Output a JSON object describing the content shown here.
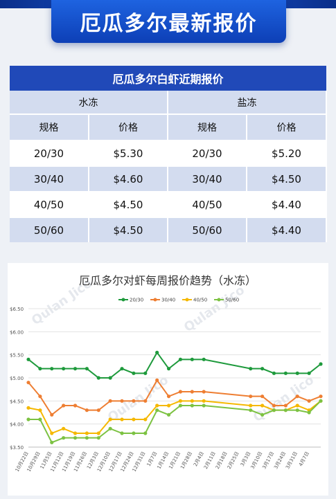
{
  "banner": {
    "title": "厄瓜多尔最新报价"
  },
  "table": {
    "title": "厄瓜多尔白虾近期报价",
    "groups": [
      "水冻",
      "盐冻"
    ],
    "headers": [
      "规格",
      "价格",
      "规格",
      "价格"
    ],
    "rows": [
      [
        "20/30",
        "$5.30",
        "20/30",
        "$5.20"
      ],
      [
        "30/40",
        "$4.60",
        "30/40",
        "$4.50"
      ],
      [
        "40/50",
        "$4.50",
        "40/50",
        "$4.40"
      ],
      [
        "50/60",
        "$4.50",
        "50/60",
        "$4.40"
      ]
    ]
  },
  "watermark": "Qulan Jico",
  "chart_data": {
    "type": "line",
    "title": "厄瓜多尔对虾每周报价趋势（水冻）",
    "yticks": [
      "$6.50",
      "$6.00",
      "$5.50",
      "$5.00",
      "$4.50",
      "$4.00",
      "$3.50"
    ],
    "ylim": [
      3.5,
      6.5
    ],
    "grid": true,
    "legend_position": "top",
    "x": [
      "10月22日",
      "10月29日",
      "11月5日",
      "11月12日",
      "11月19日",
      "11月26日",
      "12月3日",
      "12月10日",
      "12月17日",
      "12月24日",
      "12月31日",
      "1月7日",
      "1月14日",
      "1月21日",
      "1月28日",
      "2月4日",
      "2月11日",
      "2月18日",
      "2月25日",
      "3月3日",
      "3月10日",
      "3月17日",
      "3月24日",
      "3月31日",
      "4月7日"
    ],
    "x_index": [
      0,
      1,
      2,
      3,
      4,
      5,
      6,
      7,
      8,
      9,
      10,
      11,
      12,
      13,
      14,
      15,
      16,
      17,
      18,
      19,
      20,
      21,
      22,
      23,
      24
    ],
    "series": [
      {
        "name": "20/30",
        "color": "#1e9a3c",
        "points": [
          [
            0,
            5.4
          ],
          [
            1,
            5.2
          ],
          [
            2,
            5.2
          ],
          [
            3,
            5.2
          ],
          [
            4,
            5.2
          ],
          [
            5,
            5.2
          ],
          [
            6,
            5.0
          ],
          [
            7,
            5.0
          ],
          [
            8,
            5.2
          ],
          [
            9,
            5.1
          ],
          [
            10,
            5.1
          ],
          [
            11,
            5.55
          ],
          [
            12,
            5.2
          ],
          [
            13,
            5.4
          ],
          [
            14,
            5.4
          ],
          [
            15,
            5.4
          ],
          [
            19,
            5.2
          ],
          [
            20,
            5.2
          ],
          [
            21,
            5.1
          ],
          [
            22,
            5.1
          ],
          [
            23,
            5.1
          ],
          [
            24,
            5.1
          ],
          [
            25,
            5.3
          ]
        ]
      },
      {
        "name": "30/40",
        "color": "#ee7e32",
        "points": [
          [
            0,
            4.9
          ],
          [
            1,
            4.6
          ],
          [
            2,
            4.2
          ],
          [
            3,
            4.4
          ],
          [
            4,
            4.4
          ],
          [
            5,
            4.3
          ],
          [
            6,
            4.3
          ],
          [
            7,
            4.5
          ],
          [
            8,
            4.5
          ],
          [
            9,
            4.5
          ],
          [
            10,
            4.5
          ],
          [
            11,
            4.95
          ],
          [
            12,
            4.6
          ],
          [
            13,
            4.7
          ],
          [
            14,
            4.7
          ],
          [
            15,
            4.7
          ],
          [
            19,
            4.6
          ],
          [
            20,
            4.6
          ],
          [
            21,
            4.4
          ],
          [
            22,
            4.4
          ],
          [
            23,
            4.6
          ],
          [
            24,
            4.5
          ],
          [
            25,
            4.6
          ]
        ]
      },
      {
        "name": "40/50",
        "color": "#f5b800",
        "points": [
          [
            0,
            4.35
          ],
          [
            1,
            4.3
          ],
          [
            2,
            3.8
          ],
          [
            3,
            3.9
          ],
          [
            4,
            3.8
          ],
          [
            5,
            3.8
          ],
          [
            6,
            3.8
          ],
          [
            7,
            4.1
          ],
          [
            8,
            4.1
          ],
          [
            9,
            4.1
          ],
          [
            10,
            4.1
          ],
          [
            11,
            4.4
          ],
          [
            12,
            4.4
          ],
          [
            13,
            4.5
          ],
          [
            14,
            4.5
          ],
          [
            15,
            4.5
          ],
          [
            19,
            4.4
          ],
          [
            20,
            4.4
          ],
          [
            21,
            4.3
          ],
          [
            22,
            4.3
          ],
          [
            23,
            4.4
          ],
          [
            24,
            4.3
          ],
          [
            25,
            4.5
          ]
        ]
      },
      {
        "name": "50/60",
        "color": "#7cc242",
        "points": [
          [
            0,
            4.1
          ],
          [
            1,
            4.1
          ],
          [
            2,
            3.6
          ],
          [
            3,
            3.7
          ],
          [
            4,
            3.7
          ],
          [
            5,
            3.7
          ],
          [
            6,
            3.7
          ],
          [
            7,
            3.9
          ],
          [
            8,
            3.8
          ],
          [
            9,
            3.8
          ],
          [
            10,
            3.8
          ],
          [
            11,
            4.3
          ],
          [
            12,
            4.2
          ],
          [
            13,
            4.4
          ],
          [
            14,
            4.4
          ],
          [
            15,
            4.4
          ],
          [
            19,
            4.3
          ],
          [
            20,
            4.2
          ],
          [
            21,
            4.3
          ],
          [
            22,
            4.3
          ],
          [
            23,
            4.3
          ],
          [
            24,
            4.25
          ],
          [
            25,
            4.5
          ]
        ]
      }
    ]
  }
}
